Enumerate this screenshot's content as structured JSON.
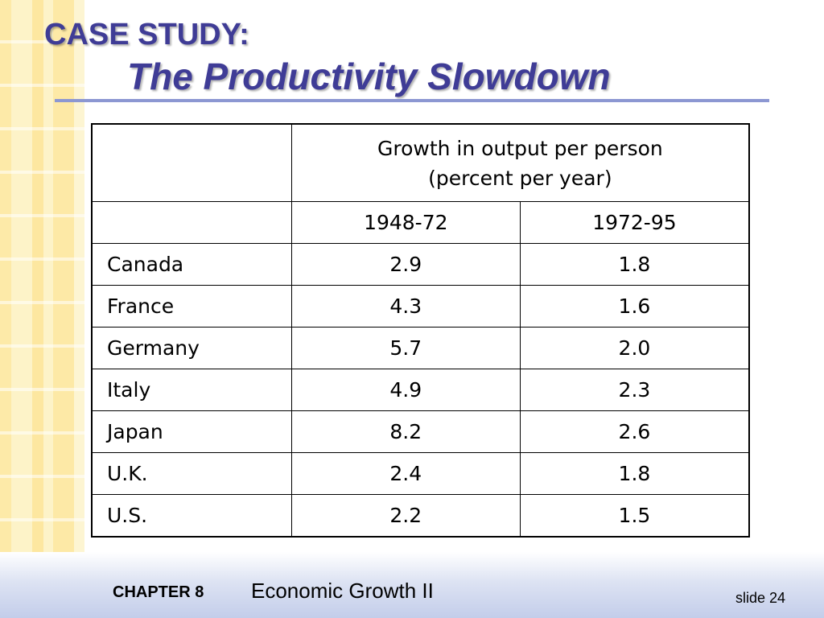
{
  "slide": {
    "title_line1": "CASE STUDY:",
    "title_line2": "The Productivity Slowdown"
  },
  "table": {
    "header_line1": "Growth in output per person",
    "header_line2": "(percent per year)",
    "columns": [
      "1948-72",
      "1972-95"
    ],
    "rows": [
      {
        "country": "Canada",
        "v1": "2.9",
        "v2": "1.8"
      },
      {
        "country": "France",
        "v1": "4.3",
        "v2": "1.6"
      },
      {
        "country": "Germany",
        "v1": "5.7",
        "v2": "2.0"
      },
      {
        "country": "Italy",
        "v1": "4.9",
        "v2": "2.3"
      },
      {
        "country": "Japan",
        "v1": "8.2",
        "v2": "2.6"
      },
      {
        "country": "U.K.",
        "v1": "2.4",
        "v2": "1.8"
      },
      {
        "country": "U.S.",
        "v1": "2.2",
        "v2": "1.5"
      }
    ]
  },
  "footer": {
    "chapter": "CHAPTER 8",
    "chapter_title": "Economic Growth II",
    "slide_number": "slide 24"
  },
  "colors": {
    "title": "#3f3c96",
    "rule": "#8c97d2",
    "stripe": "#fdeaa8"
  }
}
